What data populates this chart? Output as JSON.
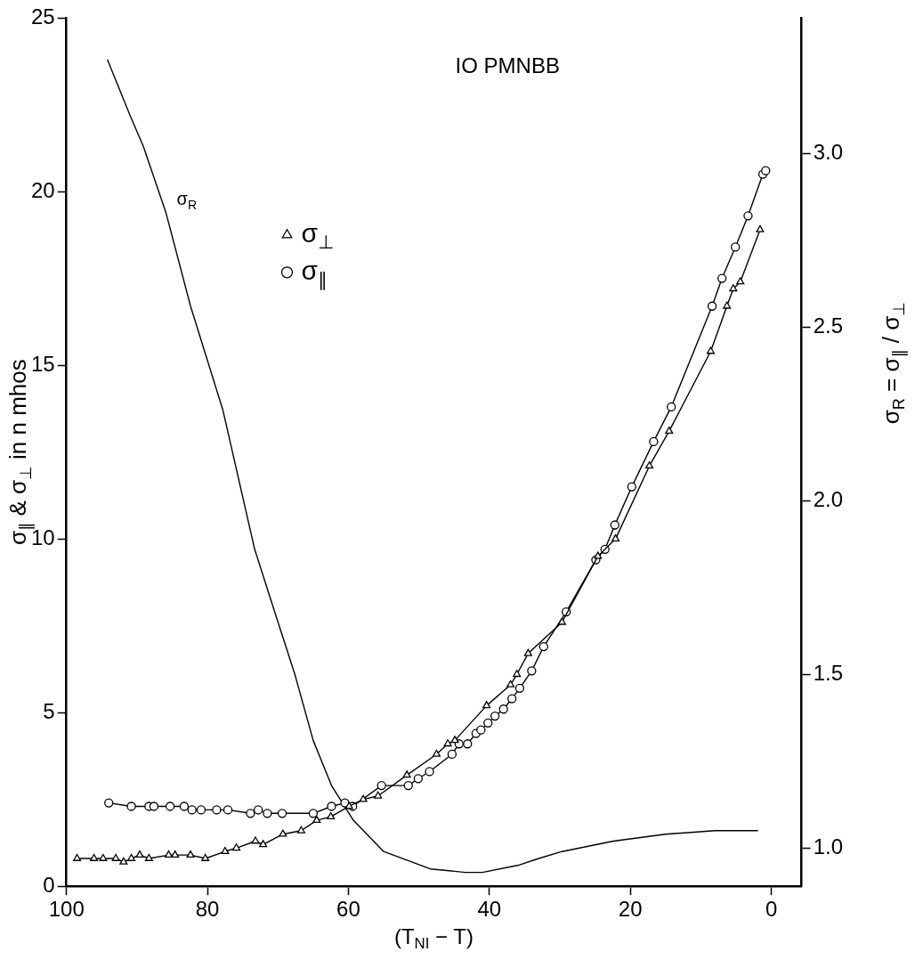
{
  "chart_data": {
    "type": "line",
    "title": "IO PMNBB",
    "xlabel": "(T$_{NI}$ − T)",
    "ylabel": "σ$_{∥}$ & σ$_{⊥}$ in n mhos",
    "y2label": "σ$_{R}$ = σ$_{∥}$ / σ$_{⊥}$",
    "xlim": [
      100,
      -4.3
    ],
    "xticks": [
      100,
      80,
      60,
      40,
      20,
      0
    ],
    "ylim": [
      0,
      25
    ],
    "yticks": [
      0,
      5,
      10,
      15,
      20,
      25
    ],
    "y2lim": [
      0.89,
      3.39
    ],
    "y2ticks": [
      {
        "value": 1,
        "label": "1.0"
      },
      1.5,
      {
        "value": 2,
        "label": "2.0"
      },
      2.5,
      {
        "value": 3,
        "label": "3.0"
      }
    ],
    "legend": "top left",
    "annotations": [
      "σ$_{R}$"
    ],
    "series": [
      {
        "name": "σ$_{⊥}$",
        "type": "line",
        "marker": "triangle",
        "color": "#000000",
        "x": [
          98.5,
          96.1,
          94.8,
          93.0,
          91.9,
          90.8,
          89.6,
          88.3,
          85.5,
          84.6,
          82.4,
          80.3,
          77.5,
          75.9,
          73.2,
          72.1,
          69.3,
          66.7,
          64.5,
          62.5,
          59.9,
          57.9,
          55.8,
          51.7,
          47.5,
          45.9,
          44.9,
          40.4,
          37.0,
          36.1,
          34.5,
          29.7,
          24.6,
          22.1,
          17.3,
          14.5,
          8.6,
          6.3,
          5.4,
          4.4,
          1.6
        ],
        "values": [
          0.8,
          0.8,
          0.8,
          0.8,
          0.7,
          0.8,
          0.9,
          0.8,
          0.9,
          0.9,
          0.9,
          0.8,
          1.0,
          1.1,
          1.3,
          1.2,
          1.5,
          1.6,
          1.9,
          2.0,
          2.3,
          2.5,
          2.6,
          3.2,
          3.8,
          4.1,
          4.2,
          5.2,
          5.8,
          6.1,
          6.7,
          7.6,
          9.5,
          10.0,
          12.1,
          13.1,
          15.4,
          16.7,
          17.2,
          17.4,
          18.9
        ]
      },
      {
        "name": "σ$_{∥}$",
        "type": "line",
        "marker": "circle",
        "color": "#000000",
        "x": [
          94.0,
          90.8,
          88.3,
          87.6,
          85.3,
          83.3,
          82.2,
          80.9,
          78.7,
          77.1,
          73.9,
          72.8,
          71.5,
          69.4,
          65.0,
          62.4,
          60.5,
          59.4,
          55.3,
          51.5,
          50.1,
          48.5,
          45.3,
          44.3,
          43.1,
          41.9,
          41.2,
          40.2,
          39.2,
          38.0,
          36.8,
          35.7,
          34.0,
          32.3,
          29.1,
          24.9,
          23.6,
          22.2,
          19.8,
          16.7,
          14.2,
          8.4,
          7.0,
          5.1,
          3.3,
          1.2,
          0.8
        ],
        "values": [
          2.4,
          2.3,
          2.3,
          2.3,
          2.3,
          2.3,
          2.2,
          2.2,
          2.2,
          2.2,
          2.1,
          2.2,
          2.1,
          2.1,
          2.1,
          2.3,
          2.4,
          2.3,
          2.9,
          2.9,
          3.1,
          3.3,
          3.8,
          4.1,
          4.1,
          4.4,
          4.5,
          4.7,
          4.9,
          5.1,
          5.4,
          5.7,
          6.2,
          6.9,
          7.9,
          9.4,
          9.7,
          10.4,
          11.5,
          12.8,
          13.8,
          16.7,
          17.5,
          18.4,
          19.3,
          20.5,
          20.6
        ]
      },
      {
        "type": "line",
        "marker": "none",
        "axis": "y2",
        "color": "#000000",
        "x": [
          94.2,
          91.0,
          89.1,
          85.9,
          82.4,
          77.8,
          73.3,
          70.3,
          67.6,
          65.0,
          62.4,
          59.3,
          55.0,
          48.4,
          43.4,
          41,
          36,
          33,
          29.7,
          22.4,
          15,
          8,
          1.9
        ],
        "values": [
          3.27,
          3.11,
          3.02,
          2.83,
          2.56,
          2.26,
          1.86,
          1.67,
          1.5,
          1.31,
          1.18,
          1.08,
          0.99,
          0.94,
          0.93,
          0.93,
          0.95,
          0.97,
          0.99,
          1.02,
          1.04,
          1.05,
          1.05
        ]
      }
    ]
  }
}
